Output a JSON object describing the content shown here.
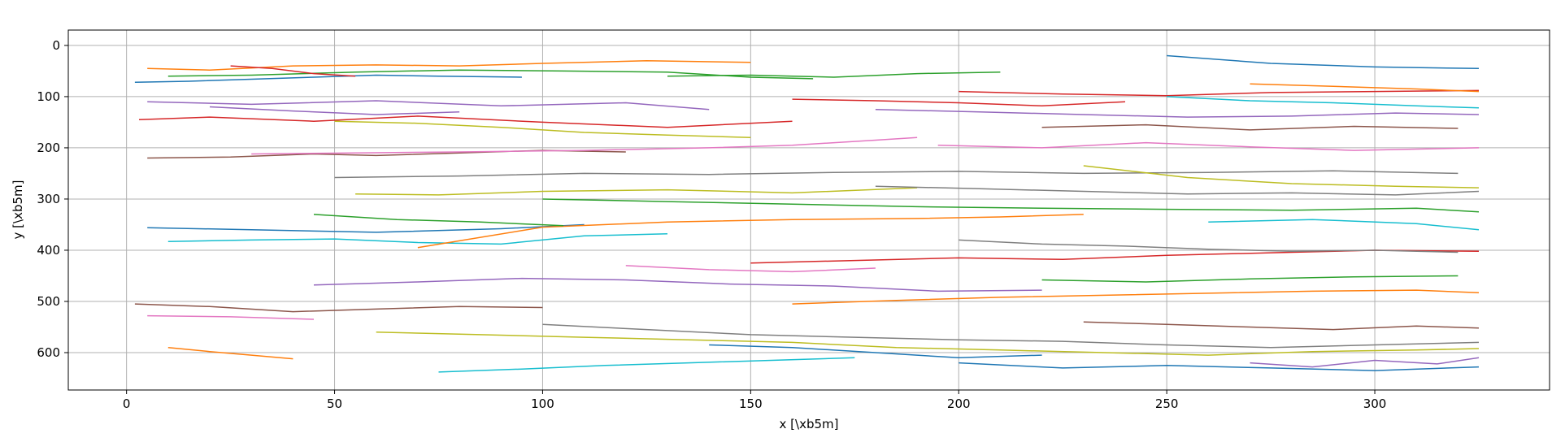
{
  "chart_data": {
    "type": "line",
    "title": "",
    "xlabel": "x [\\xb5m]",
    "ylabel": "y [\\xb5m]",
    "xlim": [
      -14,
      342
    ],
    "ylim": [
      673,
      -30
    ],
    "y_inverted": true,
    "xticks": [
      0,
      50,
      100,
      150,
      200,
      250,
      300
    ],
    "yticks": [
      0,
      100,
      200,
      300,
      400,
      500,
      600
    ],
    "grid": true,
    "legend": "none",
    "colors": [
      "#1f77b4",
      "#ff7f0e",
      "#2ca02c",
      "#d62728",
      "#9467bd",
      "#8c564b",
      "#e377c2",
      "#7f7f7f",
      "#bcbd22",
      "#17becf"
    ],
    "series": [
      {
        "x": [
          2,
          15,
          30,
          45,
          60,
          75,
          95
        ],
        "y": [
          72,
          70,
          66,
          62,
          58,
          60,
          62
        ]
      },
      {
        "x": [
          5,
          20,
          40,
          60,
          80,
          100,
          125,
          150
        ],
        "y": [
          45,
          48,
          40,
          38,
          40,
          35,
          30,
          33
        ]
      },
      {
        "x": [
          10,
          30,
          55,
          80,
          105,
          130,
          150,
          165
        ],
        "y": [
          60,
          58,
          52,
          48,
          50,
          52,
          62,
          65
        ]
      },
      {
        "x": [
          3,
          20,
          45,
          70,
          100,
          130,
          160
        ],
        "y": [
          145,
          140,
          148,
          138,
          150,
          160,
          148
        ]
      },
      {
        "x": [
          5,
          30,
          60,
          90,
          120,
          140
        ],
        "y": [
          110,
          115,
          108,
          118,
          112,
          125
        ]
      },
      {
        "x": [
          5,
          25,
          45,
          60,
          80,
          100,
          120
        ],
        "y": [
          220,
          218,
          212,
          215,
          210,
          205,
          208
        ]
      },
      {
        "x": [
          30,
          55,
          80,
          110,
          140,
          160,
          180,
          190
        ],
        "y": [
          212,
          210,
          208,
          205,
          200,
          195,
          185,
          180
        ]
      },
      {
        "x": [
          50,
          80,
          110,
          140,
          170,
          200,
          230,
          260,
          290,
          320
        ],
        "y": [
          258,
          255,
          250,
          252,
          248,
          246,
          250,
          248,
          245,
          250
        ]
      },
      {
        "x": [
          55,
          75,
          100,
          130,
          160,
          190
        ],
        "y": [
          290,
          292,
          285,
          282,
          288,
          278
        ]
      },
      {
        "x": [
          10,
          30,
          50,
          70,
          90,
          110,
          130
        ],
        "y": [
          383,
          380,
          378,
          385,
          388,
          372,
          368
        ]
      },
      {
        "x": [
          5,
          30,
          60,
          90,
          110
        ],
        "y": [
          356,
          360,
          365,
          358,
          350
        ]
      },
      {
        "x": [
          70,
          100,
          130,
          160,
          190,
          210,
          230
        ],
        "y": [
          395,
          355,
          345,
          340,
          338,
          335,
          330
        ]
      },
      {
        "x": [
          100,
          130,
          160,
          190,
          220,
          250,
          280,
          310,
          325
        ],
        "y": [
          300,
          305,
          310,
          315,
          318,
          320,
          322,
          318,
          325
        ]
      },
      {
        "x": [
          150,
          175,
          200,
          225,
          250,
          275,
          300,
          325
        ],
        "y": [
          425,
          420,
          415,
          418,
          410,
          405,
          400,
          402
        ]
      },
      {
        "x": [
          45,
          70,
          95,
          120,
          145,
          170,
          195,
          220
        ],
        "y": [
          468,
          462,
          455,
          458,
          466,
          470,
          480,
          478
        ]
      },
      {
        "x": [
          2,
          20,
          40,
          60,
          80,
          100
        ],
        "y": [
          505,
          510,
          520,
          515,
          510,
          512
        ]
      },
      {
        "x": [
          5,
          25,
          45
        ],
        "y": [
          528,
          530,
          535
        ]
      },
      {
        "x": [
          100,
          125,
          150,
          175,
          200,
          225,
          250,
          275,
          300,
          325
        ],
        "y": [
          545,
          555,
          565,
          570,
          575,
          578,
          585,
          590,
          585,
          580
        ]
      },
      {
        "x": [
          60,
          85,
          110,
          135,
          160,
          185,
          210,
          235,
          260,
          285,
          310,
          325
        ],
        "y": [
          560,
          565,
          570,
          575,
          580,
          590,
          595,
          600,
          605,
          598,
          595,
          592
        ]
      },
      {
        "x": [
          75,
          95,
          115,
          135,
          155,
          175
        ],
        "y": [
          638,
          632,
          625,
          620,
          615,
          610
        ]
      },
      {
        "x": [
          200,
          225,
          250,
          275,
          300,
          325
        ],
        "y": [
          620,
          630,
          625,
          630,
          635,
          628
        ]
      },
      {
        "x": [
          160,
          185,
          210,
          235,
          260,
          285,
          310,
          325
        ],
        "y": [
          505,
          498,
          492,
          488,
          484,
          480,
          478,
          483
        ]
      },
      {
        "x": [
          220,
          245,
          270,
          295,
          320
        ],
        "y": [
          458,
          462,
          456,
          452,
          450
        ]
      },
      {
        "x": [
          200,
          225,
          250,
          275,
          300,
          325
        ],
        "y": [
          90,
          95,
          98,
          92,
          90,
          88
        ]
      },
      {
        "x": [
          180,
          205,
          230,
          255,
          280,
          305,
          325
        ],
        "y": [
          125,
          130,
          135,
          140,
          138,
          132,
          135
        ]
      },
      {
        "x": [
          220,
          245,
          270,
          295,
          320
        ],
        "y": [
          160,
          155,
          165,
          158,
          162
        ]
      },
      {
        "x": [
          195,
          220,
          245,
          270,
          295,
          325
        ],
        "y": [
          195,
          200,
          190,
          198,
          205,
          200
        ]
      },
      {
        "x": [
          180,
          205,
          230,
          255,
          280,
          305,
          325
        ],
        "y": [
          275,
          280,
          285,
          290,
          288,
          292,
          285
        ]
      },
      {
        "x": [
          230,
          255,
          280,
          305,
          325
        ],
        "y": [
          235,
          258,
          270,
          275,
          278
        ]
      },
      {
        "x": [
          260,
          285,
          310,
          325
        ],
        "y": [
          345,
          340,
          348,
          360
        ]
      },
      {
        "x": [
          250,
          275,
          300,
          325
        ],
        "y": [
          20,
          35,
          42,
          45
        ]
      },
      {
        "x": [
          270,
          290,
          310,
          325
        ],
        "y": [
          75,
          80,
          85,
          90
        ]
      },
      {
        "x": [
          130,
          150,
          170,
          190,
          210
        ],
        "y": [
          60,
          58,
          62,
          55,
          52
        ]
      },
      {
        "x": [
          160,
          180,
          200,
          220,
          240
        ],
        "y": [
          105,
          108,
          112,
          118,
          110
        ]
      },
      {
        "x": [
          20,
          40,
          60,
          80
        ],
        "y": [
          120,
          128,
          135,
          130
        ]
      },
      {
        "x": [
          230,
          250,
          270,
          290,
          310,
          325
        ],
        "y": [
          540,
          545,
          550,
          555,
          548,
          552
        ]
      },
      {
        "x": [
          120,
          140,
          160,
          180
        ],
        "y": [
          430,
          438,
          442,
          435
        ]
      },
      {
        "x": [
          200,
          220,
          240,
          260,
          280,
          300,
          320
        ],
        "y": [
          380,
          388,
          392,
          398,
          402,
          400,
          404
        ]
      },
      {
        "x": [
          50,
          70,
          90,
          110,
          130,
          150
        ],
        "y": [
          148,
          152,
          160,
          170,
          175,
          180
        ]
      },
      {
        "x": [
          250,
          270,
          290,
          310,
          325
        ],
        "y": [
          100,
          108,
          112,
          118,
          122
        ]
      },
      {
        "x": [
          140,
          160,
          180,
          200,
          220
        ],
        "y": [
          585,
          590,
          600,
          610,
          605
        ]
      },
      {
        "x": [
          10,
          20,
          30,
          40
        ],
        "y": [
          590,
          598,
          605,
          612
        ]
      },
      {
        "x": [
          45,
          65,
          85,
          105
        ],
        "y": [
          330,
          340,
          345,
          352
        ]
      },
      {
        "x": [
          25,
          35,
          45,
          55
        ],
        "y": [
          40,
          45,
          55,
          60
        ]
      },
      {
        "x": [
          270,
          285,
          300,
          315,
          325
        ],
        "y": [
          620,
          628,
          615,
          622,
          610
        ]
      }
    ]
  }
}
